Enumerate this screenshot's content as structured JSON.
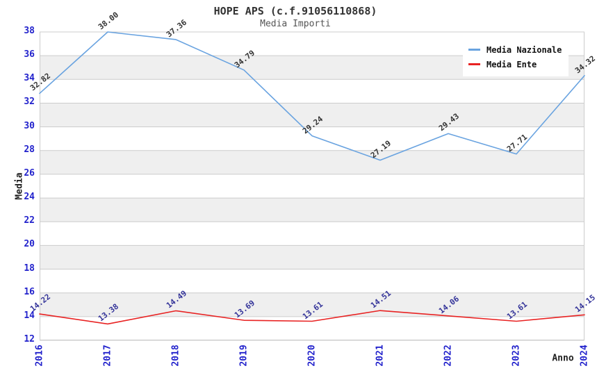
{
  "chart_data": {
    "type": "line",
    "title": "HOPE APS (c.f.91056110868)",
    "subtitle": "Media Importi",
    "xlabel": "Anno",
    "ylabel": "Media",
    "categories": [
      "2016",
      "2017",
      "2018",
      "2019",
      "2020",
      "2021",
      "2022",
      "2023",
      "2024"
    ],
    "series": [
      {
        "name": "Media Nazionale",
        "color": "#69a3e0",
        "label_color": "#333333",
        "values": [
          32.82,
          38.0,
          37.36,
          34.79,
          29.24,
          27.19,
          29.43,
          27.71,
          34.32
        ]
      },
      {
        "name": "Media Ente",
        "color": "#e82222",
        "label_color": "#333399",
        "values": [
          14.22,
          13.38,
          14.49,
          13.69,
          13.61,
          14.51,
          14.06,
          13.61,
          14.15
        ]
      }
    ],
    "ylim": [
      12,
      38
    ],
    "ytick_step": 2,
    "grid": "horizontal-bands",
    "legend_position": "top-right"
  },
  "colors": {
    "tick_label": "#2222cc",
    "gridline": "#cccccc",
    "band_gray": "#efefef",
    "band_white": "#ffffff",
    "axis_border": "#cccccc",
    "title": "#333333",
    "subtitle": "#555555"
  }
}
